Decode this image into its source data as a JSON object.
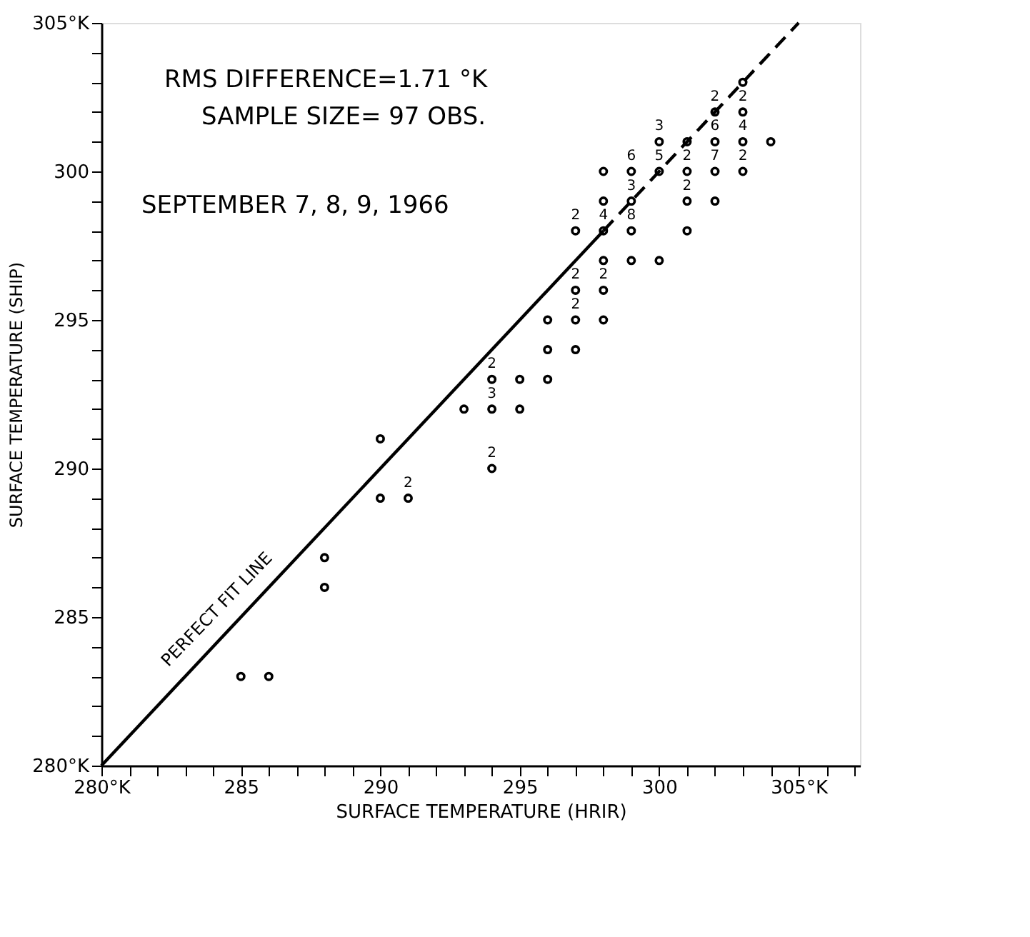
{
  "chart_data": {
    "type": "scatter",
    "xlabel": "SURFACE TEMPERATURE (HRIR)",
    "ylabel": "SURFACE TEMPERATURE (SHIP)",
    "annotations": [
      "RMS DIFFERENCE=1.71 °K",
      "SAMPLE SIZE= 97 OBS.",
      "SEPTEMBER 7, 8, 9, 1966",
      {
        "text": "2",
        "x": 291,
        "y": 289
      },
      {
        "text": "3",
        "x": 294,
        "y": 292
      },
      {
        "text": "2",
        "x": 294,
        "y": 293
      },
      {
        "text": "2",
        "x": 294,
        "y": 290
      },
      {
        "text": "2",
        "x": 297,
        "y": 295
      },
      {
        "text": "2",
        "x": 297,
        "y": 296
      },
      {
        "text": "2",
        "x": 298,
        "y": 296
      },
      {
        "text": "2",
        "x": 297,
        "y": 298
      },
      {
        "text": "4",
        "x": 298,
        "y": 298
      },
      {
        "text": "8",
        "x": 299,
        "y": 298
      },
      {
        "text": "3",
        "x": 299,
        "y": 299
      },
      {
        "text": "2",
        "x": 301,
        "y": 299
      },
      {
        "text": "6",
        "x": 299,
        "y": 300
      },
      {
        "text": "5",
        "x": 300,
        "y": 300
      },
      {
        "text": "2",
        "x": 301,
        "y": 300
      },
      {
        "text": "7",
        "x": 302,
        "y": 300
      },
      {
        "text": "2",
        "x": 303,
        "y": 300
      },
      {
        "text": "3",
        "x": 300,
        "y": 301
      },
      {
        "text": "6",
        "x": 302,
        "y": 301
      },
      {
        "text": "4",
        "x": 303,
        "y": 301
      },
      {
        "text": "2",
        "x": 302,
        "y": 302
      },
      {
        "text": "2",
        "x": 303,
        "y": 302
      }
    ],
    "xlim": [
      280,
      307.2
    ],
    "ylim": [
      280,
      305
    ],
    "xticks": [
      {
        "value": 280,
        "label": "280°K"
      },
      {
        "value": 281,
        "label": null
      },
      {
        "value": 282,
        "label": null
      },
      {
        "value": 283,
        "label": null
      },
      {
        "value": 284,
        "label": null
      },
      285,
      {
        "value": 286,
        "label": null
      },
      {
        "value": 287,
        "label": null
      },
      {
        "value": 288,
        "label": null
      },
      {
        "value": 289,
        "label": null
      },
      290,
      {
        "value": 291,
        "label": null
      },
      {
        "value": 292,
        "label": null
      },
      {
        "value": 293,
        "label": null
      },
      {
        "value": 294,
        "label": null
      },
      295,
      {
        "value": 296,
        "label": null
      },
      {
        "value": 297,
        "label": null
      },
      {
        "value": 298,
        "label": null
      },
      {
        "value": 299,
        "label": null
      },
      300,
      {
        "value": 301,
        "label": null
      },
      {
        "value": 302,
        "label": null
      },
      {
        "value": 303,
        "label": null
      },
      {
        "value": 304,
        "label": null
      },
      {
        "value": 305,
        "label": "305°K"
      },
      {
        "value": 306,
        "label": null
      },
      {
        "value": 307,
        "label": null
      }
    ],
    "yticks": [
      {
        "value": 280,
        "label": "280°K"
      },
      {
        "value": 281,
        "label": null
      },
      {
        "value": 282,
        "label": null
      },
      {
        "value": 283,
        "label": null
      },
      {
        "value": 284,
        "label": null
      },
      285,
      {
        "value": 286,
        "label": null
      },
      {
        "value": 287,
        "label": null
      },
      {
        "value": 288,
        "label": null
      },
      {
        "value": 289,
        "label": null
      },
      290,
      {
        "value": 291,
        "label": null
      },
      {
        "value": 292,
        "label": null
      },
      {
        "value": 293,
        "label": null
      },
      {
        "value": 294,
        "label": null
      },
      295,
      {
        "value": 296,
        "label": null
      },
      {
        "value": 297,
        "label": null
      },
      {
        "value": 298,
        "label": null
      },
      {
        "value": 299,
        "label": null
      },
      300,
      {
        "value": 301,
        "label": null
      },
      {
        "value": 302,
        "label": null
      },
      {
        "value": 303,
        "label": null
      },
      {
        "value": 304,
        "label": null
      },
      {
        "value": 305,
        "label": "305°K"
      }
    ],
    "grid": false,
    "series": [
      {
        "color": "#000000",
        "marker": "circle",
        "x": [
          285,
          286,
          288,
          288,
          290,
          290,
          291,
          293,
          294,
          295,
          294,
          295,
          296,
          294,
          296,
          297,
          296,
          297,
          298,
          297,
          298,
          298,
          299,
          300,
          297,
          298,
          299,
          301,
          298,
          299,
          301,
          302,
          298,
          299,
          300,
          301,
          302,
          303,
          300,
          301,
          302,
          303,
          304,
          302,
          303,
          303
        ],
        "values": [
          283,
          283,
          287,
          286,
          291,
          289,
          289,
          292,
          292,
          292,
          293,
          293,
          293,
          290,
          294,
          294,
          295,
          295,
          295,
          296,
          296,
          297,
          297,
          297,
          298,
          298,
          298,
          298,
          299,
          299,
          299,
          299,
          300,
          300,
          300,
          300,
          300,
          300,
          301,
          301,
          301,
          301,
          301,
          302,
          302,
          303
        ]
      },
      {
        "type": "line",
        "name": "PERFECT FIT LINE",
        "color": "#000000",
        "line_style": "solid",
        "marker": "none",
        "x": [
          280,
          298
        ],
        "values": [
          280,
          298
        ]
      },
      {
        "type": "line",
        "color": "#000000",
        "line_style": "dashed",
        "marker": "none",
        "x": [
          298,
          305
        ],
        "values": [
          298,
          305
        ]
      }
    ]
  }
}
